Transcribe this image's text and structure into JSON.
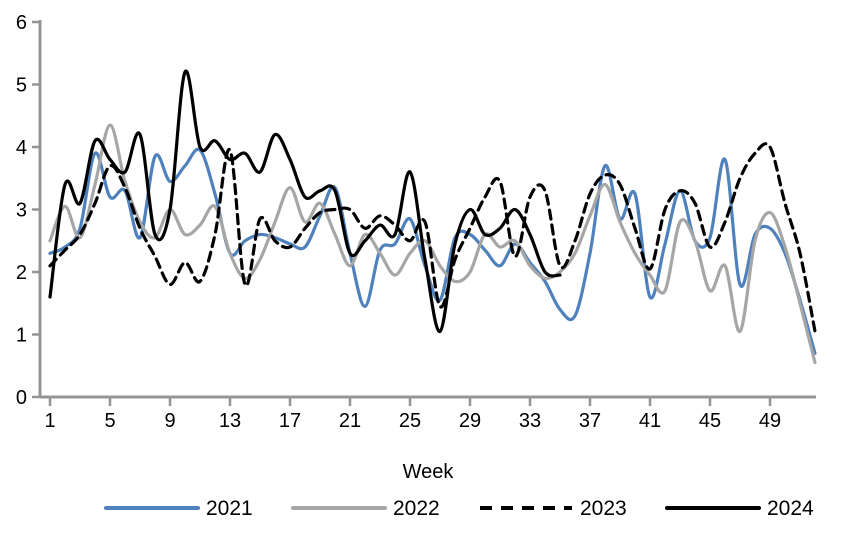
{
  "chart_data": {
    "type": "line",
    "title": "",
    "xlabel": "Week",
    "ylabel": "",
    "x_range": [
      1,
      52
    ],
    "ylim": [
      0,
      6
    ],
    "y_ticks": [
      0,
      1,
      2,
      3,
      4,
      5,
      6
    ],
    "x_ticks": [
      1,
      5,
      9,
      13,
      17,
      21,
      25,
      29,
      33,
      37,
      41,
      45,
      49
    ],
    "grid": false,
    "legend_position": "bottom",
    "axis_color": "#949494",
    "text_color": "#000000",
    "series": [
      {
        "name": "2021",
        "color": "#4F81BD",
        "style": "solid",
        "start_week": 1,
        "values": [
          2.3,
          2.4,
          2.7,
          3.9,
          3.2,
          3.3,
          2.55,
          3.85,
          3.45,
          3.7,
          3.95,
          3.25,
          2.3,
          2.5,
          2.6,
          2.55,
          2.45,
          2.4,
          2.9,
          3.35,
          2.3,
          1.45,
          2.35,
          2.45,
          2.85,
          2.1,
          1.55,
          2.55,
          2.6,
          2.35,
          2.1,
          2.45,
          2.15,
          1.85,
          1.4,
          1.3,
          2.3,
          3.7,
          2.85,
          3.25,
          1.6,
          2.45,
          3.3,
          2.5,
          2.55,
          3.8,
          1.8,
          2.6,
          2.7,
          2.3,
          1.55,
          0.7
        ]
      },
      {
        "name": "2022",
        "color": "#A6A6A6",
        "style": "solid",
        "start_week": 1,
        "values": [
          2.5,
          3.05,
          2.55,
          3.4,
          4.35,
          3.45,
          2.8,
          2.55,
          3.0,
          2.6,
          2.75,
          3.05,
          2.3,
          1.9,
          2.2,
          2.8,
          3.35,
          2.8,
          3.1,
          2.6,
          2.1,
          2.6,
          2.3,
          1.95,
          2.3,
          2.5,
          2.1,
          1.85,
          2.0,
          2.6,
          2.4,
          2.5,
          2.1,
          1.9,
          2.0,
          2.3,
          2.9,
          3.4,
          2.8,
          2.3,
          1.95,
          1.7,
          2.8,
          2.5,
          1.7,
          2.1,
          1.05,
          2.5,
          2.95,
          2.4,
          1.5,
          0.55
        ]
      },
      {
        "name": "2023",
        "color": "#000000",
        "style": "dashed",
        "start_week": 1,
        "values": [
          2.1,
          2.35,
          2.6,
          3.1,
          3.7,
          3.35,
          2.7,
          2.25,
          1.8,
          2.15,
          1.85,
          2.6,
          3.95,
          1.8,
          2.85,
          2.5,
          2.4,
          2.7,
          2.95,
          3.0,
          3.0,
          2.7,
          2.9,
          2.75,
          2.5,
          2.8,
          1.45,
          2.2,
          2.7,
          3.2,
          3.45,
          2.25,
          3.2,
          3.3,
          2.1,
          2.5,
          3.25,
          3.55,
          3.4,
          2.7,
          2.05,
          3.0,
          3.3,
          3.1,
          2.4,
          2.8,
          3.5,
          3.9,
          4.0,
          3.1,
          2.3,
          1.05
        ]
      },
      {
        "name": "2024",
        "color": "#000000",
        "style": "solid",
        "start_week": 1,
        "values": [
          1.6,
          3.4,
          3.1,
          4.1,
          3.8,
          3.6,
          4.2,
          2.6,
          3.0,
          5.2,
          4.0,
          4.1,
          3.8,
          3.9,
          3.6,
          4.2,
          3.8,
          3.2,
          3.3,
          3.3,
          2.3,
          2.5,
          2.75,
          2.6,
          3.6,
          2.2,
          1.05,
          2.45,
          3.0,
          2.6,
          2.7,
          3.0,
          2.6,
          2.0,
          1.95
        ]
      }
    ]
  }
}
